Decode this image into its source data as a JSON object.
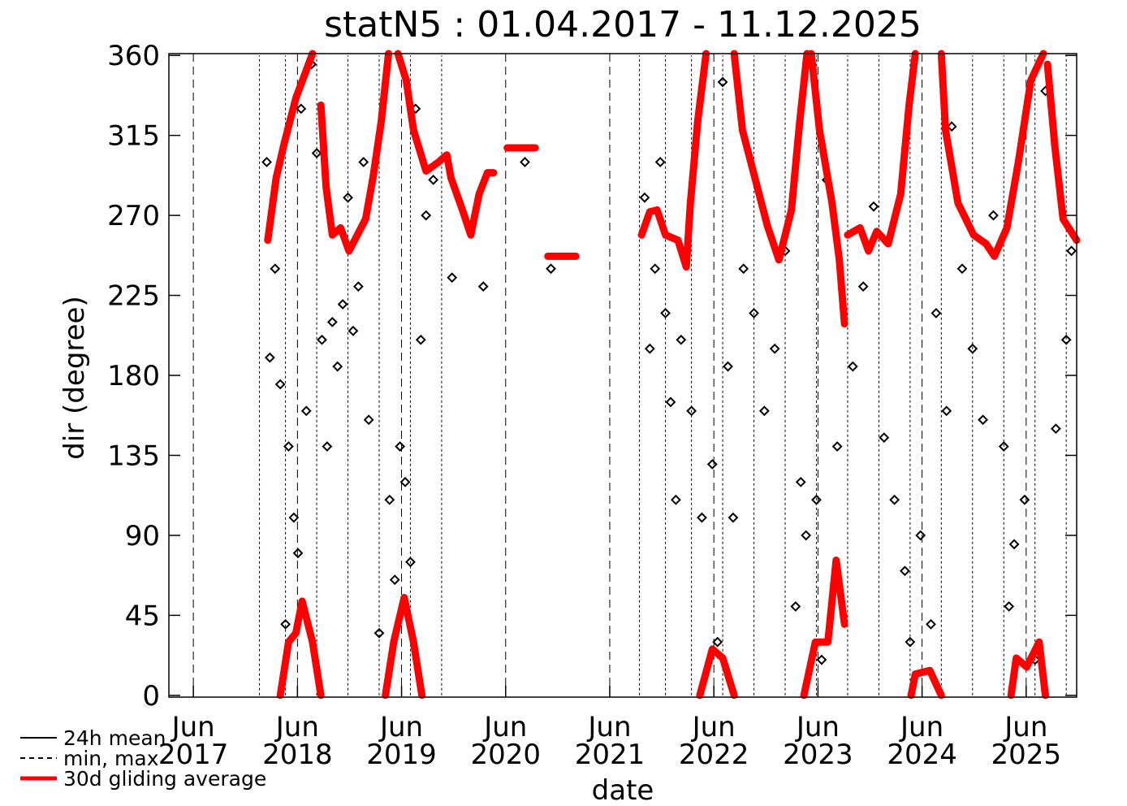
{
  "chart_data": {
    "type": "scatter",
    "title": "statN5 : 01.04.2017 - 11.12.2025",
    "x_label": "date",
    "y_label": "dir (degree)",
    "xlim": [
      2017.18,
      2025.9
    ],
    "ylim": [
      -1,
      361
    ],
    "yticks": [
      0,
      45,
      90,
      135,
      180,
      225,
      270,
      315,
      360
    ],
    "xticks": [
      {
        "value": 2017.415,
        "label": "Jun\n2017"
      },
      {
        "value": 2018.415,
        "label": "Jun\n2018"
      },
      {
        "value": 2019.415,
        "label": "Jun\n2019"
      },
      {
        "value": 2020.415,
        "label": "Jun\n2020"
      },
      {
        "value": 2021.415,
        "label": "Jun\n2021"
      },
      {
        "value": 2022.415,
        "label": "Jun\n2022"
      },
      {
        "value": 2023.415,
        "label": "Jun\n2023"
      },
      {
        "value": 2024.415,
        "label": "Jun\n2024"
      },
      {
        "value": 2025.415,
        "label": "Jun\n2025"
      }
    ],
    "grid": true,
    "legend": "bottom-left",
    "series": [
      {
        "name": "24h mean",
        "color": "#000000",
        "style": "diamond",
        "x": [
          2018.12,
          2018.15,
          2018.2,
          2018.25,
          2018.3,
          2018.33,
          2018.38,
          2018.42,
          2018.45,
          2018.5,
          2018.55,
          2018.6,
          2018.65,
          2018.7,
          2018.75,
          2018.8,
          2018.85,
          2018.9,
          2018.95,
          2019.0,
          2019.05,
          2019.1,
          2019.2,
          2019.3,
          2019.35,
          2019.4,
          2019.45,
          2019.5,
          2019.55,
          2019.6,
          2019.65,
          2019.72,
          2019.9,
          2020.2,
          2020.6,
          2020.85,
          2021.75,
          2021.8,
          2021.85,
          2021.9,
          2021.95,
          2022.0,
          2022.05,
          2022.1,
          2022.2,
          2022.3,
          2022.4,
          2022.45,
          2022.5,
          2022.55,
          2022.6,
          2022.7,
          2022.8,
          2022.9,
          2023.0,
          2023.1,
          2023.2,
          2023.25,
          2023.3,
          2023.4,
          2023.45,
          2023.5,
          2023.6,
          2023.75,
          2023.85,
          2023.95,
          2024.05,
          2024.15,
          2024.25,
          2024.3,
          2024.4,
          2024.5,
          2024.55,
          2024.65,
          2024.7,
          2024.8,
          2024.9,
          2025.0,
          2025.1,
          2025.2,
          2025.25,
          2025.3,
          2025.4,
          2025.5,
          2025.6,
          2025.7,
          2025.8,
          2025.85
        ],
        "values": [
          300,
          190,
          240,
          175,
          40,
          140,
          100,
          80,
          330,
          160,
          355,
          305,
          200,
          140,
          210,
          185,
          220,
          280,
          205,
          230,
          300,
          155,
          35,
          110,
          65,
          140,
          120,
          75,
          330,
          200,
          270,
          290,
          235,
          230,
          300,
          240,
          280,
          195,
          240,
          300,
          215,
          165,
          110,
          200,
          160,
          100,
          130,
          30,
          345,
          185,
          100,
          240,
          215,
          160,
          195,
          250,
          50,
          120,
          90,
          110,
          20,
          290,
          140,
          185,
          230,
          275,
          145,
          110,
          70,
          30,
          90,
          40,
          215,
          160,
          320,
          240,
          195,
          155,
          270,
          140,
          50,
          85,
          110,
          20,
          340,
          150,
          200,
          250
        ]
      },
      {
        "name": "min, max",
        "color": "#000000",
        "style": "range",
        "x": [
          2018.05,
          2018.3,
          2018.6,
          2018.9,
          2019.2,
          2019.5,
          2019.8,
          2021.7,
          2021.95,
          2022.2,
          2022.5,
          2022.8,
          2023.1,
          2023.4,
          2023.7,
          2024.0,
          2024.3,
          2024.6,
          2024.9,
          2025.2,
          2025.5,
          2025.8
        ],
        "min": [
          0,
          0,
          0,
          0,
          0,
          0,
          0,
          0,
          0,
          0,
          0,
          0,
          0,
          0,
          0,
          0,
          0,
          0,
          0,
          0,
          0,
          0
        ],
        "max": [
          360,
          360,
          360,
          360,
          360,
          360,
          360,
          360,
          360,
          360,
          360,
          360,
          360,
          360,
          360,
          360,
          360,
          360,
          360,
          360,
          360,
          360
        ]
      },
      {
        "name": "30d gliding average",
        "color": "#ff0000",
        "style": "thick-line",
        "x": [
          2018.13,
          2018.21,
          2018.29,
          2018.4,
          2018.56,
          null,
          2018.64,
          2018.69,
          2018.75,
          2018.83,
          2018.91,
          2018.99,
          2019.07,
          2019.14,
          2019.22,
          2019.29,
          null,
          2019.38,
          2019.46,
          2019.53,
          2019.65,
          2019.77,
          2019.85,
          2019.89,
          2020.0,
          2020.08,
          2020.16,
          2020.24,
          2020.3,
          null,
          2020.43,
          2020.7,
          null,
          2020.82,
          2021.09,
          null,
          2021.72,
          2021.8,
          2021.87,
          2021.95,
          2022.07,
          2022.15,
          2022.19,
          2022.26,
          2022.34,
          null,
          2022.61,
          2022.69,
          2022.81,
          2022.93,
          2023.04,
          2023.16,
          2023.24,
          2023.31,
          null,
          2023.35,
          2023.43,
          2023.55,
          2023.62,
          2023.67,
          null,
          2023.7,
          2023.82,
          2023.9,
          2023.98,
          2024.09,
          2024.21,
          2024.29,
          2024.35,
          null,
          2024.6,
          2024.64,
          2024.76,
          2024.91,
          2025.03,
          2025.11,
          2025.23,
          2025.34,
          2025.46,
          2025.58,
          null,
          2025.62,
          2025.69,
          2025.77,
          2025.9,
          null,
          2018.25,
          2018.33,
          2018.4,
          2018.46,
          2018.56,
          2018.64,
          null,
          2019.26,
          2019.34,
          2019.44,
          2019.53,
          2019.61,
          null,
          2022.28,
          2022.4,
          2022.5,
          2022.61,
          null,
          2023.28,
          2023.39,
          2023.51,
          2023.59,
          2023.67,
          null,
          2024.31,
          2024.35,
          2024.49,
          2024.6,
          null,
          2025.27,
          2025.32,
          2025.42,
          2025.54,
          2025.6
        ],
        "values": [
          256,
          291,
          311,
          336,
          361,
          null,
          332,
          286,
          259,
          263,
          250,
          259,
          268,
          291,
          323,
          361,
          null,
          361,
          346,
          318,
          295,
          300,
          304,
          291,
          273,
          259,
          282,
          294,
          294,
          null,
          308,
          308,
          null,
          247,
          247,
          null,
          259,
          272,
          273,
          259,
          256,
          241,
          277,
          323,
          361,
          null,
          361,
          318,
          291,
          264,
          245,
          273,
          323,
          361,
          null,
          361,
          318,
          277,
          245,
          209,
          null,
          259,
          263,
          250,
          261,
          254,
          282,
          332,
          361,
          null,
          361,
          318,
          277,
          259,
          254,
          247,
          263,
          300,
          346,
          361,
          null,
          355,
          309,
          268,
          256,
          null,
          0,
          30,
          35,
          53,
          30,
          0,
          null,
          0,
          30,
          55,
          30,
          0,
          null,
          0,
          26,
          21,
          0,
          null,
          0,
          30,
          30,
          76,
          40,
          null,
          0,
          12,
          14,
          0,
          null,
          0,
          21,
          16,
          30,
          0
        ]
      }
    ]
  }
}
